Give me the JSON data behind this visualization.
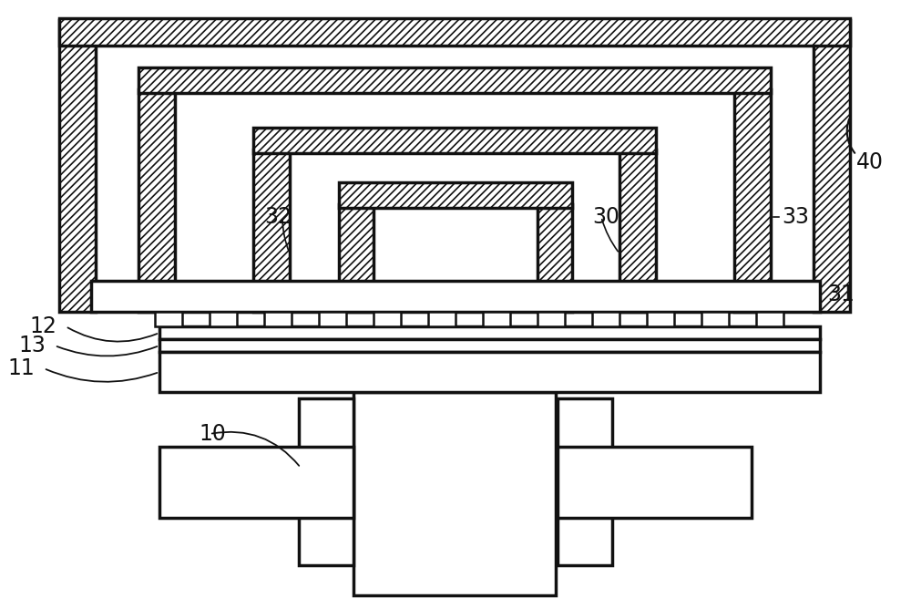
{
  "bg_color": "#ffffff",
  "lc": "#111111",
  "lw": 2.5,
  "hatch_lw": 1.2,
  "label_fs": 17,
  "figsize": [
    10.0,
    6.68
  ]
}
